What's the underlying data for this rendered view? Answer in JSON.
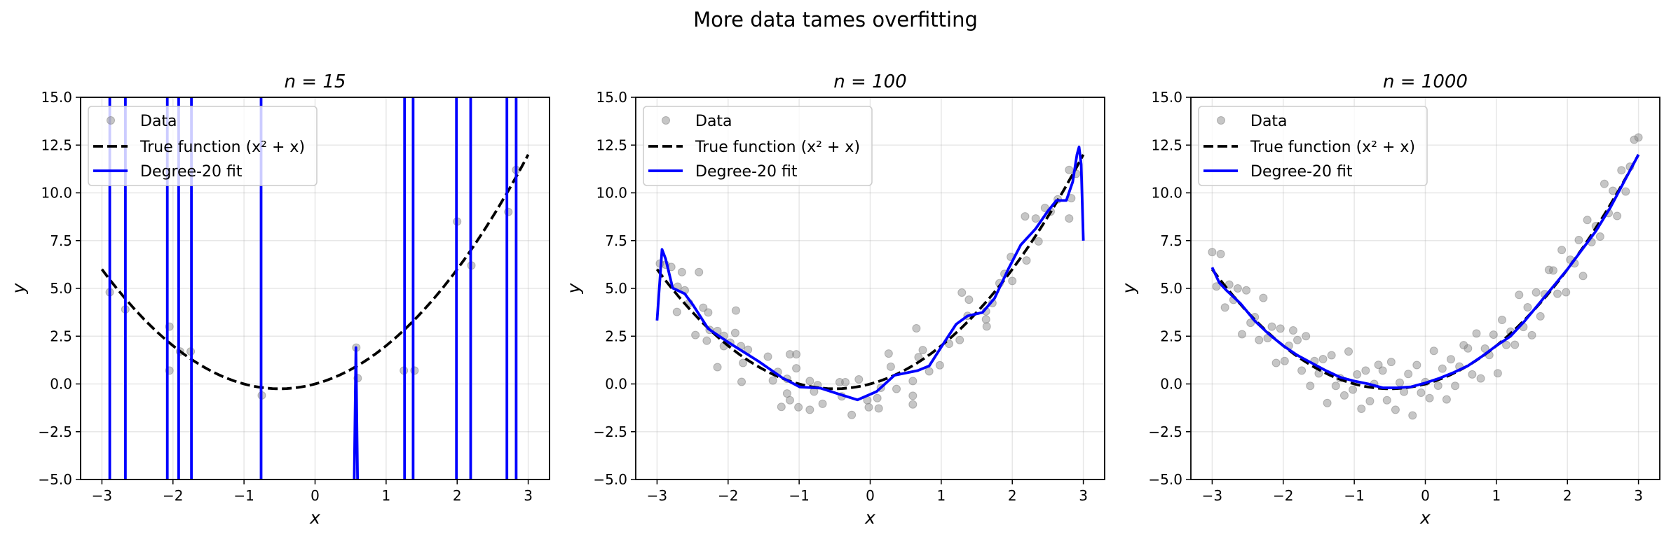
{
  "suptitle": "More data tames overfitting",
  "colors": {
    "data": "#808080",
    "true_function": "#000000",
    "fit": "#0000ff",
    "grid": "#b0b0b0"
  },
  "chart_data": [
    {
      "type": "scatter+line",
      "title": "n = 15",
      "xlabel": "x",
      "ylabel": "y",
      "xlim": [
        -3.3,
        3.3
      ],
      "ylim": [
        -5,
        15
      ],
      "xticks": [
        "−3",
        "−2",
        "−1",
        "0",
        "1",
        "2",
        "3"
      ],
      "xtick_values": [
        -3,
        -2,
        -1,
        0,
        1,
        2,
        3
      ],
      "yticks": [
        "−5.0",
        "−2.5",
        "0.0",
        "2.5",
        "5.0",
        "7.5",
        "10.0",
        "12.5",
        "15.0"
      ],
      "ytick_values": [
        -5,
        -2.5,
        0,
        2.5,
        5,
        7.5,
        10,
        12.5,
        15
      ],
      "grid": true,
      "legend": {
        "placement": "upper-left",
        "entries": [
          "Data",
          "True function (x² + x)",
          "Degree-20 fit"
        ]
      },
      "data_points": [
        [
          -2.89,
          4.8
        ],
        [
          -2.67,
          3.9
        ],
        [
          -2.05,
          3.0
        ],
        [
          -2.05,
          0.7
        ],
        [
          -1.9,
          1.7
        ],
        [
          -1.75,
          1.7
        ],
        [
          -0.75,
          -0.6
        ],
        [
          0.58,
          1.9
        ],
        [
          0.6,
          0.3
        ],
        [
          1.25,
          0.7
        ],
        [
          1.4,
          0.7
        ],
        [
          2.0,
          8.5
        ],
        [
          2.2,
          6.2
        ],
        [
          2.72,
          9.0
        ],
        [
          2.83,
          11.2
        ]
      ],
      "true_function": "x^2 + x",
      "fit_segments": [
        [
          [
            -2.89,
            100
          ],
          [
            -2.89,
            -100
          ]
        ],
        [
          [
            -2.67,
            100
          ],
          [
            -2.67,
            -100
          ]
        ],
        [
          [
            -2.08,
            100
          ],
          [
            -2.08,
            -100
          ]
        ],
        [
          [
            -1.92,
            100
          ],
          [
            -1.92,
            -100
          ]
        ],
        [
          [
            -1.74,
            100
          ],
          [
            -1.74,
            -100
          ]
        ],
        [
          [
            -0.76,
            100
          ],
          [
            -0.76,
            -100
          ]
        ],
        [
          [
            0.55,
            -100
          ],
          [
            0.575,
            1.9
          ],
          [
            0.6,
            -100
          ]
        ],
        [
          [
            1.26,
            100
          ],
          [
            1.26,
            -100
          ]
        ],
        [
          [
            1.38,
            100
          ],
          [
            1.38,
            -100
          ]
        ],
        [
          [
            1.99,
            100
          ],
          [
            1.99,
            -100
          ]
        ],
        [
          [
            2.19,
            100
          ],
          [
            2.19,
            -100
          ]
        ],
        [
          [
            2.7,
            100
          ],
          [
            2.7,
            -100
          ]
        ],
        [
          [
            2.83,
            100
          ],
          [
            2.83,
            -100
          ]
        ]
      ]
    },
    {
      "type": "scatter+line",
      "title": "n = 100",
      "xlabel": "x",
      "ylabel": "y",
      "xlim": [
        -3.3,
        3.3
      ],
      "ylim": [
        -5,
        15
      ],
      "xticks": [
        "−3",
        "−2",
        "−1",
        "0",
        "1",
        "2",
        "3"
      ],
      "xtick_values": [
        -3,
        -2,
        -1,
        0,
        1,
        2,
        3
      ],
      "yticks": [
        "−5.0",
        "−2.5",
        "0.0",
        "2.5",
        "5.0",
        "7.5",
        "10.0",
        "12.5",
        "15.0"
      ],
      "ytick_values": [
        -5,
        -2.5,
        0,
        2.5,
        5,
        7.5,
        10,
        12.5,
        15
      ],
      "grid": true,
      "legend": {
        "placement": "upper-left",
        "entries": [
          "Data",
          "True function (x² + x)",
          "Degree-20 fit"
        ]
      },
      "data_points": [
        [
          -2.96,
          6.3
        ],
        [
          -2.88,
          6.24
        ],
        [
          -2.8,
          6.12
        ],
        [
          -2.65,
          5.85
        ],
        [
          -2.41,
          5.85
        ],
        [
          -2.71,
          5.09
        ],
        [
          -2.61,
          4.9
        ],
        [
          -2.55,
          4.23
        ],
        [
          -2.72,
          3.77
        ],
        [
          -2.35,
          3.99
        ],
        [
          -2.28,
          3.74
        ],
        [
          -1.89,
          3.84
        ],
        [
          -2.46,
          2.56
        ],
        [
          -2.3,
          2.26
        ],
        [
          -2.26,
          2.83
        ],
        [
          -2.15,
          2.77
        ],
        [
          -2.06,
          2.52
        ],
        [
          -1.9,
          2.67
        ],
        [
          -1.97,
          2.16
        ],
        [
          -2.06,
          1.98
        ],
        [
          -1.82,
          1.98
        ],
        [
          -1.72,
          1.79
        ],
        [
          -1.79,
          1.1
        ],
        [
          -2.15,
          0.88
        ],
        [
          -1.81,
          0.11
        ],
        [
          -1.44,
          1.43
        ],
        [
          -1.13,
          1.55
        ],
        [
          -1.04,
          1.55
        ],
        [
          -1.04,
          0.82
        ],
        [
          -1.3,
          0.63
        ],
        [
          -1.37,
          0.18
        ],
        [
          -1.17,
          0.27
        ],
        [
          -1.17,
          -0.5
        ],
        [
          -1.13,
          -0.85
        ],
        [
          -1.25,
          -1.2
        ],
        [
          -1.01,
          -1.22
        ],
        [
          -0.85,
          -1.35
        ],
        [
          -0.85,
          0.15
        ],
        [
          -0.74,
          -0.06
        ],
        [
          -0.79,
          -0.4
        ],
        [
          -0.67,
          -1.04
        ],
        [
          -0.43,
          0.09
        ],
        [
          -0.35,
          0.09
        ],
        [
          -0.4,
          -0.65
        ],
        [
          -0.16,
          0.24
        ],
        [
          -0.26,
          -1.62
        ],
        [
          -0.04,
          -0.85
        ],
        [
          -0.02,
          -1.22
        ],
        [
          0.1,
          -0.74
        ],
        [
          0.12,
          -1.28
        ],
        [
          0.15,
          -0.2
        ],
        [
          0.26,
          1.59
        ],
        [
          0.29,
          0.9
        ],
        [
          0.37,
          -0.26
        ],
        [
          0.6,
          0.15
        ],
        [
          0.6,
          -0.62
        ],
        [
          0.6,
          -1.07
        ],
        [
          0.65,
          2.91
        ],
        [
          0.68,
          1.4
        ],
        [
          0.74,
          1.77
        ],
        [
          0.83,
          0.66
        ],
        [
          0.98,
          0.98
        ],
        [
          1.11,
          2.1
        ],
        [
          1.26,
          2.3
        ],
        [
          1.29,
          4.78
        ],
        [
          1.39,
          4.41
        ],
        [
          1.37,
          3.56
        ],
        [
          1.63,
          3.8
        ],
        [
          1.63,
          3.38
        ],
        [
          1.64,
          3.01
        ],
        [
          1.72,
          4.23
        ],
        [
          1.82,
          5.27
        ],
        [
          1.89,
          5.76
        ],
        [
          2.0,
          5.39
        ],
        [
          1.98,
          6.65
        ],
        [
          2.2,
          6.46
        ],
        [
          2.37,
          7.46
        ],
        [
          2.18,
          8.77
        ],
        [
          2.33,
          8.66
        ],
        [
          2.46,
          9.21
        ],
        [
          2.54,
          9.02
        ],
        [
          2.64,
          9.66
        ],
        [
          2.8,
          8.66
        ],
        [
          2.83,
          9.72
        ],
        [
          2.8,
          11.2
        ],
        [
          2.9,
          11.0
        ]
      ],
      "true_function": "x^2 + x",
      "fit_segments": [
        [
          [
            -3.0,
            3.32
          ],
          [
            -2.93,
            7.04
          ],
          [
            -2.88,
            6.55
          ],
          [
            -2.78,
            5.02
          ],
          [
            -2.61,
            4.72
          ],
          [
            -2.49,
            4.11
          ],
          [
            -2.28,
            2.89
          ],
          [
            -1.99,
            2.16
          ],
          [
            -1.57,
            1.18
          ],
          [
            -1.24,
            0.33
          ],
          [
            -0.99,
            -0.16
          ],
          [
            -0.7,
            -0.22
          ],
          [
            -0.45,
            -0.52
          ],
          [
            -0.18,
            -0.83
          ],
          [
            0.09,
            -0.4
          ],
          [
            0.34,
            0.45
          ],
          [
            0.67,
            0.7
          ],
          [
            0.83,
            0.94
          ],
          [
            1.04,
            2.16
          ],
          [
            1.21,
            3.13
          ],
          [
            1.37,
            3.56
          ],
          [
            1.58,
            3.74
          ],
          [
            1.75,
            4.48
          ],
          [
            1.95,
            6.06
          ],
          [
            2.12,
            7.28
          ],
          [
            2.33,
            8.13
          ],
          [
            2.49,
            8.99
          ],
          [
            2.62,
            9.6
          ],
          [
            2.76,
            9.6
          ],
          [
            2.85,
            10.57
          ],
          [
            2.91,
            12.0
          ],
          [
            2.94,
            12.4
          ],
          [
            2.97,
            11.5
          ],
          [
            3.0,
            7.5
          ]
        ]
      ]
    },
    {
      "type": "scatter+line",
      "title": "n = 1000",
      "xlabel": "x",
      "ylabel": "y",
      "xlim": [
        -3.3,
        3.3
      ],
      "ylim": [
        -5,
        15
      ],
      "xticks": [
        "−3",
        "−2",
        "−1",
        "0",
        "1",
        "2",
        "3"
      ],
      "xtick_values": [
        -3,
        -2,
        -1,
        0,
        1,
        2,
        3
      ],
      "yticks": [
        "−5.0",
        "−2.5",
        "0.0",
        "2.5",
        "5.0",
        "7.5",
        "10.0",
        "12.5",
        "15.0"
      ],
      "ytick_values": [
        -5,
        -2.5,
        0,
        2.5,
        5,
        7.5,
        10,
        12.5,
        15
      ],
      "grid": true,
      "legend": {
        "placement": "upper-left",
        "entries": [
          "Data",
          "True function (x² + x)",
          "Degree-20 fit"
        ]
      },
      "data_points": [
        [
          -3,
          6.9
        ],
        [
          -2.94,
          5.1
        ],
        [
          -2.88,
          6.8
        ],
        [
          -2.82,
          4.0
        ],
        [
          -2.76,
          5.2
        ],
        [
          -2.7,
          4.4
        ],
        [
          -2.64,
          5.0
        ],
        [
          -2.58,
          2.6
        ],
        [
          -2.52,
          4.9
        ],
        [
          -2.46,
          3.2
        ],
        [
          -2.4,
          3.5
        ],
        [
          -2.34,
          2.3
        ],
        [
          -2.28,
          4.5
        ],
        [
          -2.22,
          2.4
        ],
        [
          -2.16,
          3.0
        ],
        [
          -2.1,
          1.1
        ],
        [
          -2.04,
          2.9
        ],
        [
          -1.98,
          1.2
        ],
        [
          -1.92,
          2.0
        ],
        [
          -1.86,
          2.8
        ],
        [
          -1.8,
          2.3
        ],
        [
          -1.74,
          0.7
        ],
        [
          -1.68,
          2.5
        ],
        [
          -1.62,
          -0.1
        ],
        [
          -1.56,
          1.2
        ],
        [
          -1.5,
          0.55
        ],
        [
          -1.44,
          1.3
        ],
        [
          -1.38,
          -1.0
        ],
        [
          -1.32,
          1.5
        ],
        [
          -1.26,
          -0.1
        ],
        [
          -1.2,
          0.3
        ],
        [
          -1.14,
          -0.6
        ],
        [
          -1.08,
          1.7
        ],
        [
          -1.02,
          -0.3
        ],
        [
          -0.96,
          0.5
        ],
        [
          -0.9,
          -1.3
        ],
        [
          -0.84,
          0.7
        ],
        [
          -0.78,
          -0.9
        ],
        [
          -0.72,
          0.0
        ],
        [
          -0.66,
          1.0
        ],
        [
          -0.6,
          0.7
        ],
        [
          -0.54,
          -0.85
        ],
        [
          -0.48,
          1.15
        ],
        [
          -0.42,
          -1.35
        ],
        [
          -0.36,
          0.07
        ],
        [
          -0.3,
          -0.41
        ],
        [
          -0.24,
          0.52
        ],
        [
          -0.18,
          -1.65
        ],
        [
          -0.12,
          0.99
        ],
        [
          -0.06,
          -0.46
        ],
        [
          0,
          0.1
        ],
        [
          0.06,
          -0.74
        ],
        [
          0.12,
          1.73
        ],
        [
          0.18,
          -0.09
        ],
        [
          0.24,
          0.8
        ],
        [
          0.3,
          -0.81
        ],
        [
          0.36,
          1.29
        ],
        [
          0.42,
          -0.1
        ],
        [
          0.48,
          0.91
        ],
        [
          0.54,
          2.03
        ],
        [
          0.6,
          1.86
        ],
        [
          0.66,
          0.5
        ],
        [
          0.72,
          2.64
        ],
        [
          0.78,
          0.29
        ],
        [
          0.84,
          1.85
        ],
        [
          0.9,
          1.51
        ],
        [
          0.96,
          2.58
        ],
        [
          1.02,
          0.56
        ],
        [
          1.08,
          3.35
        ],
        [
          1.14,
          2.04
        ],
        [
          1.2,
          2.74
        ],
        [
          1.26,
          2.05
        ],
        [
          1.32,
          4.66
        ],
        [
          1.38,
          2.98
        ],
        [
          1.44,
          4.01
        ],
        [
          1.5,
          2.55
        ],
        [
          1.56,
          4.79
        ],
        [
          1.62,
          3.54
        ],
        [
          1.68,
          4.7
        ],
        [
          1.74,
          5.97
        ],
        [
          1.8,
          5.94
        ],
        [
          1.86,
          4.72
        ],
        [
          1.92,
          7.01
        ],
        [
          1.98,
          4.8
        ],
        [
          2.04,
          6.5
        ],
        [
          2.1,
          6.31
        ],
        [
          2.16,
          7.53
        ],
        [
          2.22,
          5.65
        ],
        [
          2.28,
          8.58
        ],
        [
          2.34,
          7.42
        ],
        [
          2.4,
          8.26
        ],
        [
          2.46,
          7.71
        ],
        [
          2.52,
          10.47
        ],
        [
          2.58,
          8.94
        ],
        [
          2.64,
          10.11
        ],
        [
          2.7,
          8.79
        ],
        [
          2.76,
          11.18
        ],
        [
          2.82,
          10.07
        ],
        [
          2.88,
          11.37
        ],
        [
          2.94,
          12.78
        ],
        [
          3.0,
          12.9
        ]
      ],
      "true_function": "x^2 + x",
      "fit_segments": [
        [
          [
            -3,
            6.1
          ],
          [
            -2.9,
            5.3
          ],
          [
            -2.8,
            4.9
          ],
          [
            -2.6,
            4.2
          ],
          [
            -2.4,
            3.3
          ],
          [
            -2.2,
            2.6
          ],
          [
            -2,
            2.0
          ],
          [
            -1.8,
            1.5
          ],
          [
            -1.6,
            1.1
          ],
          [
            -1.4,
            0.7
          ],
          [
            -1.2,
            0.35
          ],
          [
            -1,
            0.15
          ],
          [
            -0.8,
            0
          ],
          [
            -0.6,
            -0.2
          ],
          [
            -0.4,
            -0.2
          ],
          [
            -0.2,
            -0.15
          ],
          [
            0,
            0.05
          ],
          [
            0.2,
            0.3
          ],
          [
            0.4,
            0.6
          ],
          [
            0.6,
            0.95
          ],
          [
            0.8,
            1.45
          ],
          [
            1,
            2.0
          ],
          [
            1.2,
            2.5
          ],
          [
            1.4,
            3.3
          ],
          [
            1.6,
            4.2
          ],
          [
            1.8,
            5.1
          ],
          [
            2,
            6.0
          ],
          [
            2.2,
            7.0
          ],
          [
            2.4,
            8.0
          ],
          [
            2.6,
            9.2
          ],
          [
            2.8,
            10.6
          ],
          [
            3,
            12.0
          ]
        ]
      ]
    }
  ]
}
